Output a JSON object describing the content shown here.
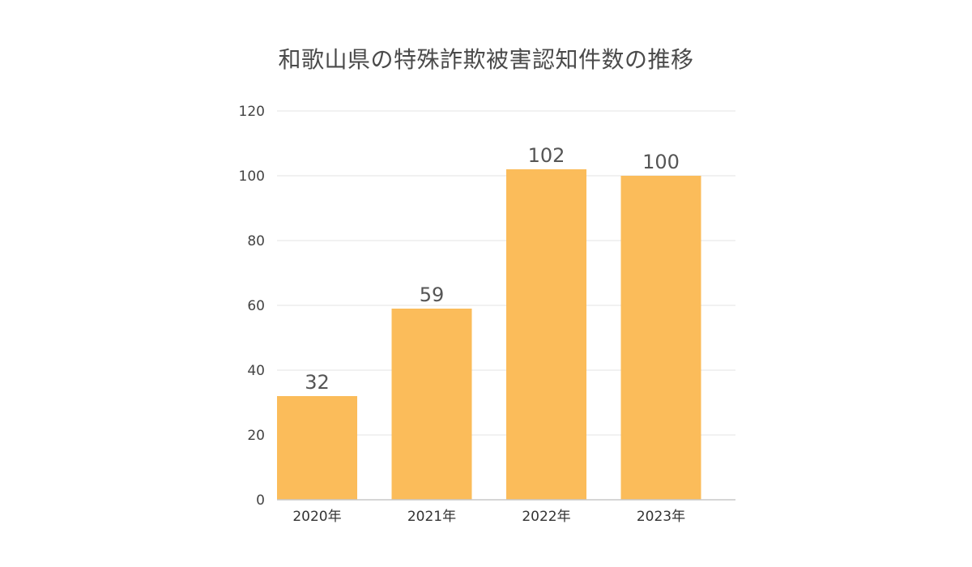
{
  "chart_data": {
    "type": "bar",
    "title": "和歌山県の特殊詐欺被害認知件数の推移",
    "categories": [
      "2020年",
      "2021年",
      "2022年",
      "2023年"
    ],
    "values": [
      32,
      59,
      102,
      100
    ],
    "data_labels": [
      "32",
      "59",
      "102",
      "100"
    ],
    "ylim": [
      0,
      120
    ],
    "yticks": [
      0,
      20,
      40,
      60,
      80,
      100,
      120
    ],
    "ytick_labels": [
      "0",
      "20",
      "40",
      "60",
      "80",
      "100",
      "120"
    ],
    "xlabel": "",
    "ylabel": "",
    "grid": true,
    "legend": "none"
  },
  "colors": {
    "bar": "#FBBC5A",
    "grid": "#e3e3e3",
    "axis": "#c8c8c8",
    "title": "#4a4a4a"
  }
}
